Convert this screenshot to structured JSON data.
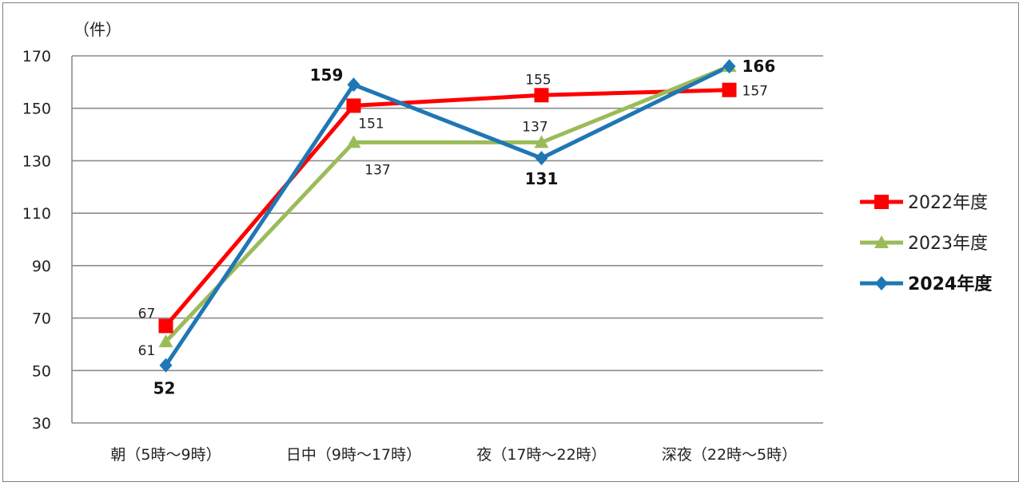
{
  "chart_data": {
    "type": "line",
    "unit_label": "（件）",
    "categories": [
      "朝（5時～9時）",
      "日中（9時～17時）",
      "夜（17時～22時）",
      "深夜（22時～5時）"
    ],
    "ylim": [
      30,
      170
    ],
    "yticks": [
      30,
      50,
      70,
      90,
      110,
      130,
      150,
      170
    ],
    "grid": true,
    "legend": "right",
    "series": [
      {
        "name": "2022年度",
        "values": [
          67,
          151,
          155,
          157
        ],
        "color": "#ff0000",
        "marker": "square",
        "bold": false
      },
      {
        "name": "2023年度",
        "values": [
          61,
          137,
          137,
          166
        ],
        "color": "#9bbb59",
        "marker": "triangle",
        "bold": false
      },
      {
        "name": "2024年度",
        "values": [
          52,
          159,
          131,
          166
        ],
        "color": "#1f77b4",
        "marker": "diamond",
        "bold": true
      }
    ],
    "data_labels": [
      {
        "series": 0,
        "point": 0,
        "text": "67"
      },
      {
        "series": 0,
        "point": 1,
        "text": "151"
      },
      {
        "series": 0,
        "point": 2,
        "text": "155"
      },
      {
        "series": 0,
        "point": 3,
        "text": "157"
      },
      {
        "series": 1,
        "point": 0,
        "text": "61"
      },
      {
        "series": 1,
        "point": 1,
        "text": "137"
      },
      {
        "series": 1,
        "point": 2,
        "text": "137"
      },
      {
        "series": 2,
        "point": 0,
        "text": "52"
      },
      {
        "series": 2,
        "point": 1,
        "text": "159"
      },
      {
        "series": 2,
        "point": 2,
        "text": "131"
      },
      {
        "series": 2,
        "point": 3,
        "text": "166"
      }
    ]
  }
}
